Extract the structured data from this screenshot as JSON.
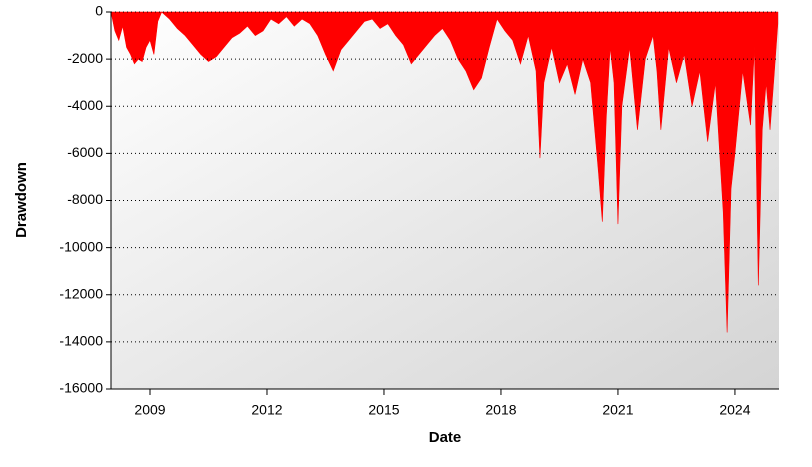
{
  "chart_data": {
    "type": "area",
    "x_label": "Date",
    "y_label": "Drawdown",
    "color": "#ff0000",
    "grid": true,
    "xlim": [
      2008,
      2025.13
    ],
    "xticks": [
      2009,
      2012,
      2015,
      2018,
      2021,
      2024
    ],
    "ylim": [
      -16000,
      0
    ],
    "yticks": [
      0,
      -2000,
      -4000,
      -6000,
      -8000,
      -10000,
      -12000,
      -14000,
      -16000
    ],
    "x": [
      2008.0,
      2008.1,
      2008.2,
      2008.3,
      2008.4,
      2008.5,
      2008.6,
      2008.7,
      2008.8,
      2008.9,
      2009.0,
      2009.1,
      2009.2,
      2009.3,
      2009.5,
      2009.7,
      2009.9,
      2010.1,
      2010.3,
      2010.5,
      2010.7,
      2010.9,
      2011.1,
      2011.3,
      2011.5,
      2011.7,
      2011.9,
      2012.1,
      2012.3,
      2012.5,
      2012.7,
      2012.9,
      2013.1,
      2013.3,
      2013.5,
      2013.7,
      2013.9,
      2014.1,
      2014.3,
      2014.5,
      2014.7,
      2014.9,
      2015.1,
      2015.3,
      2015.5,
      2015.7,
      2015.9,
      2016.1,
      2016.3,
      2016.5,
      2016.7,
      2016.9,
      2017.1,
      2017.3,
      2017.5,
      2017.7,
      2017.9,
      2018.1,
      2018.3,
      2018.5,
      2018.7,
      2018.9,
      2019.0,
      2019.1,
      2019.3,
      2019.5,
      2019.7,
      2019.9,
      2020.1,
      2020.3,
      2020.5,
      2020.6,
      2020.7,
      2020.8,
      2020.9,
      2021.0,
      2021.1,
      2021.3,
      2021.5,
      2021.7,
      2021.9,
      2022.0,
      2022.1,
      2022.3,
      2022.5,
      2022.7,
      2022.9,
      2023.1,
      2023.3,
      2023.5,
      2023.7,
      2023.8,
      2023.9,
      2024.0,
      2024.2,
      2024.4,
      2024.5,
      2024.6,
      2024.7,
      2024.8,
      2024.9,
      2025.0,
      2025.1
    ],
    "values": [
      0,
      -800,
      -1200,
      -600,
      -1500,
      -1800,
      -2200,
      -2000,
      -2100,
      -1500,
      -1200,
      -1800,
      -400,
      0,
      -300,
      -700,
      -1000,
      -1400,
      -1800,
      -2100,
      -1900,
      -1500,
      -1100,
      -900,
      -600,
      -1000,
      -800,
      -300,
      -500,
      -200,
      -600,
      -300,
      -500,
      -1000,
      -1800,
      -2500,
      -1600,
      -1200,
      -800,
      -400,
      -300,
      -700,
      -500,
      -1000,
      -1400,
      -2200,
      -1800,
      -1400,
      -1000,
      -700,
      -1200,
      -2000,
      -2500,
      -3300,
      -2800,
      -1500,
      -300,
      -800,
      -1200,
      -2200,
      -1000,
      -2500,
      -6200,
      -3000,
      -1500,
      -3000,
      -2200,
      -3500,
      -2000,
      -3000,
      -6800,
      -8900,
      -4500,
      -1500,
      -3000,
      -9000,
      -4000,
      -1500,
      -5000,
      -2000,
      -1000,
      -2500,
      -5000,
      -1500,
      -3000,
      -1800,
      -4000,
      -2500,
      -5500,
      -3000,
      -8500,
      -13600,
      -7500,
      -6000,
      -2500,
      -4800,
      -1500,
      -11600,
      -5000,
      -3000,
      -5000,
      -2800,
      -500
    ]
  }
}
